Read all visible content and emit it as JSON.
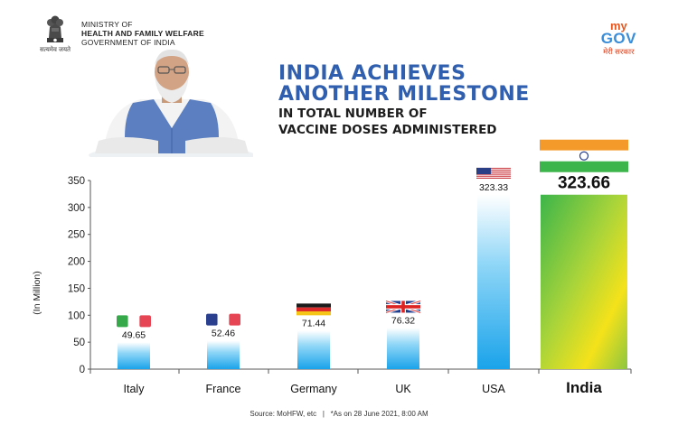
{
  "header": {
    "emblem_caption": "सत्यमेव जयते",
    "ministry_line1": "MINISTRY OF",
    "ministry_line2": "HEALTH AND FAMILY WELFARE",
    "ministry_line3": "GOVERNMENT OF INDIA"
  },
  "logo": {
    "my": "my",
    "gov": "GOV",
    "tagline": "मेरी सरकार"
  },
  "headline": {
    "line1": "INDIA ACHIEVES",
    "line2": "ANOTHER MILESTONE",
    "line3": "IN TOTAL NUMBER OF",
    "line4": "VACCINE DOSES ADMINISTERED"
  },
  "footer": {
    "source": "Source: MoHFW, etc",
    "separator": "|",
    "note": "*As on 28 June 2021, 8:00 AM"
  },
  "colors": {
    "headline_blue": "#2f5fae",
    "bar_blue": "#1fa8ea",
    "india_green": "#3cb54a",
    "india_yellow": "#f4e21a",
    "saffron": "#f39a2b"
  },
  "chart_data": {
    "type": "bar",
    "ylabel": "(In Million)",
    "ylim": [
      0,
      350
    ],
    "yticks": [
      0,
      50,
      100,
      150,
      200,
      250,
      300,
      350
    ],
    "categories": [
      "Italy",
      "France",
      "Germany",
      "UK",
      "USA",
      "India"
    ],
    "values": [
      49.65,
      52.46,
      71.44,
      76.32,
      323.33,
      323.66
    ],
    "value_labels": [
      "49.65",
      "52.46",
      "71.44",
      "76.32",
      "323.33",
      "323.66"
    ],
    "flags": [
      "italy-flag",
      "france-flag",
      "germany-flag",
      "uk-flag",
      "usa-flag",
      "india-flag"
    ],
    "highlight": "India"
  }
}
